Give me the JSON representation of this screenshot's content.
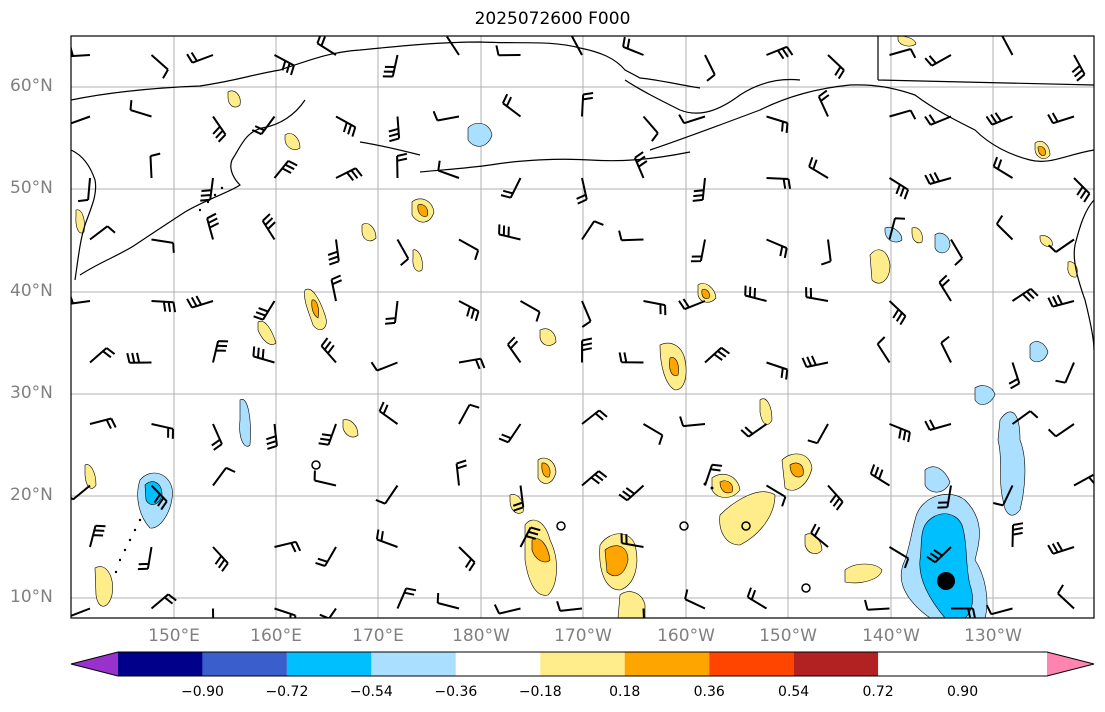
{
  "title": "2025072600 F000",
  "lat_labels": [
    "60°N",
    "50°N",
    "40°N",
    "30°N",
    "20°N",
    "10°N"
  ],
  "lon_labels": [
    "150°E",
    "160°E",
    "170°E",
    "180°W",
    "170°W",
    "160°W",
    "150°W",
    "140°W",
    "130°W"
  ],
  "colorbar": {
    "ticks": [
      "−0.90",
      "−0.72",
      "−0.54",
      "−0.36",
      "−0.18",
      "0.18",
      "0.36",
      "0.54",
      "0.72",
      "0.90"
    ],
    "colors": [
      "#9932cc",
      "#00008b",
      "#3a5fcd",
      "#00bfff",
      "#aadfff",
      "#ffffff",
      "#ffec8b",
      "#ffa500",
      "#ff4500",
      "#b22222",
      "#ff85b0"
    ]
  },
  "field_colors": {
    "pos_light": "#ffec8b",
    "pos_mid": "#ffa500",
    "neg_light": "#aadfff",
    "neg_mid": "#00bfff"
  }
}
